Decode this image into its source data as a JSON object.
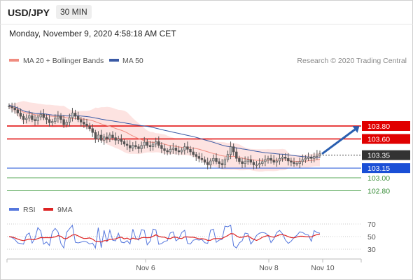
{
  "header": {
    "symbol": "USD/JPY",
    "timeframe": "30 MIN"
  },
  "timestamp": "Monday, November 9, 2020 4:58:18 AM CET",
  "legend": {
    "ma20": "MA 20 + Bollinger Bands",
    "ma50": "MA 50",
    "credit": "Research © 2020 Trading Central"
  },
  "oscillator_legend": {
    "rsi": "RSI",
    "ma": "9MA"
  },
  "colors": {
    "ma20": "#f08c80",
    "ma50": "#3a5aa5",
    "bollinger_fill": "#fde3e1",
    "resistance": "#e00000",
    "support_blue": "#1a4fd6",
    "support_green": "#58a858",
    "bull": "#bfbfbf",
    "bear": "#555555",
    "arrow": "#2a5fb0",
    "rsi": "#5577dd",
    "rsi_ma": "#dd2222"
  },
  "chart_data": [
    {
      "type": "candlestick",
      "title": "USD/JPY",
      "ylim": [
        102.6,
        104.4
      ],
      "x_tick_labels": [
        "Nov 6",
        "Nov 8",
        "Nov 10"
      ],
      "series": [
        {
          "name": "MA 20 + Bollinger Bands"
        },
        {
          "name": "MA 50"
        }
      ],
      "levels": [
        {
          "value": 103.8,
          "label": "103.80",
          "kind": "resistance"
        },
        {
          "value": 103.6,
          "label": "103.60",
          "kind": "resistance"
        },
        {
          "value": 103.35,
          "label": "103.35",
          "kind": "current"
        },
        {
          "value": 103.15,
          "label": "103.15",
          "kind": "support"
        },
        {
          "value": 103.0,
          "label": "103.00",
          "kind": "support"
        },
        {
          "value": 102.8,
          "label": "102.80",
          "kind": "support"
        }
      ],
      "candle_closes": [
        104.1,
        104.08,
        104.05,
        104.0,
        103.95,
        103.9,
        103.92,
        103.96,
        103.9,
        103.88,
        103.94,
        103.98,
        103.93,
        103.9,
        103.85,
        103.87,
        103.92,
        103.95,
        103.9,
        103.82,
        103.86,
        103.93,
        104.0,
        103.95,
        103.9,
        103.86,
        103.83,
        103.8,
        103.76,
        103.7,
        103.6,
        103.66,
        103.58,
        103.63,
        103.6,
        103.66,
        103.62,
        103.58,
        103.6,
        103.56,
        103.52,
        103.5,
        103.46,
        103.5,
        103.48,
        103.45,
        103.5,
        103.55,
        103.5,
        103.48,
        103.52,
        103.56,
        103.5,
        103.45,
        103.42,
        103.4,
        103.44,
        103.46,
        103.42,
        103.4,
        103.43,
        103.48,
        103.44,
        103.4,
        103.36,
        103.33,
        103.3,
        103.28,
        103.24,
        103.2,
        103.26,
        103.3,
        103.25,
        103.22,
        103.2,
        103.28,
        103.36,
        103.48,
        103.4,
        103.3,
        103.25,
        103.22,
        103.25,
        103.28,
        103.24,
        103.2,
        103.2,
        103.22,
        103.25,
        103.28,
        103.3,
        103.27,
        103.24,
        103.26,
        103.3,
        103.32,
        103.3,
        103.26,
        103.24,
        103.22,
        103.22,
        103.25,
        103.28,
        103.3,
        103.32,
        103.3,
        103.33,
        103.35,
        103.37
      ],
      "rsi_axis": [
        70,
        50,
        30
      ]
    }
  ]
}
